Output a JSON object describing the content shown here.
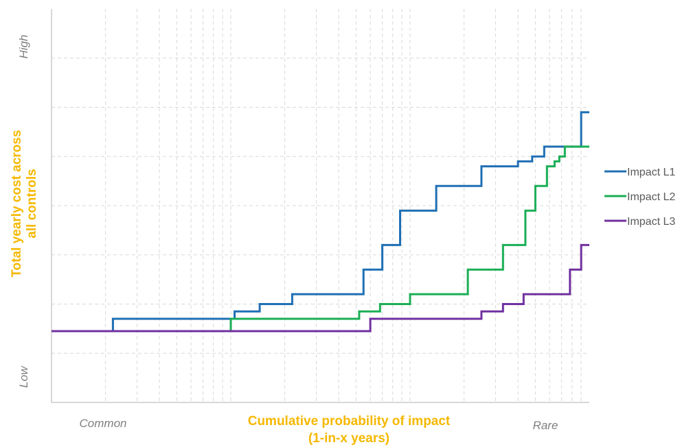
{
  "chart_data": {
    "type": "line",
    "step": true,
    "x_scale": "log",
    "xlim": [
      1,
      1000
    ],
    "ylim": [
      0,
      8
    ],
    "grid": true,
    "legend_position": "right",
    "xlabel_lines": [
      "Cumulative probability of impact",
      "(1-in-x years)"
    ],
    "ylabel_lines": [
      "Total yearly cost across",
      "all controls"
    ],
    "x_tick_labels": [
      "Common",
      "Rare"
    ],
    "y_tick_labels": [
      "Low",
      "High"
    ],
    "series": [
      {
        "name": "Impact L1",
        "color": "#1f6fb4",
        "points": [
          [
            1,
            1.45
          ],
          [
            2.2,
            1.45
          ],
          [
            2.2,
            1.7
          ],
          [
            10.5,
            1.7
          ],
          [
            10.5,
            1.85
          ],
          [
            14.5,
            1.85
          ],
          [
            14.5,
            2.0
          ],
          [
            22,
            2.0
          ],
          [
            22,
            2.2
          ],
          [
            55,
            2.2
          ],
          [
            55,
            2.7
          ],
          [
            70,
            2.7
          ],
          [
            70,
            3.2
          ],
          [
            88,
            3.2
          ],
          [
            88,
            3.9
          ],
          [
            140,
            3.9
          ],
          [
            140,
            4.4
          ],
          [
            250,
            4.4
          ],
          [
            250,
            4.8
          ],
          [
            400,
            4.8
          ],
          [
            400,
            4.9
          ],
          [
            480,
            4.9
          ],
          [
            480,
            5.0
          ],
          [
            560,
            5.0
          ],
          [
            560,
            5.2
          ],
          [
            900,
            5.2
          ],
          [
            900,
            5.9
          ],
          [
            1000,
            5.9
          ]
        ]
      },
      {
        "name": "Impact L2",
        "color": "#1aae55",
        "points": [
          [
            1,
            1.45
          ],
          [
            10,
            1.45
          ],
          [
            10,
            1.7
          ],
          [
            52,
            1.7
          ],
          [
            52,
            1.85
          ],
          [
            68,
            1.85
          ],
          [
            68,
            2.0
          ],
          [
            100,
            2.0
          ],
          [
            100,
            2.2
          ],
          [
            210,
            2.2
          ],
          [
            210,
            2.7
          ],
          [
            330,
            2.7
          ],
          [
            330,
            3.2
          ],
          [
            440,
            3.2
          ],
          [
            440,
            3.9
          ],
          [
            500,
            3.9
          ],
          [
            500,
            4.4
          ],
          [
            580,
            4.4
          ],
          [
            580,
            4.8
          ],
          [
            640,
            4.8
          ],
          [
            640,
            4.9
          ],
          [
            680,
            4.9
          ],
          [
            680,
            5.0
          ],
          [
            730,
            5.0
          ],
          [
            730,
            5.2
          ],
          [
            1000,
            5.2
          ]
        ]
      },
      {
        "name": "Impact L3",
        "color": "#7030a0",
        "points": [
          [
            1,
            1.45
          ],
          [
            60,
            1.45
          ],
          [
            60,
            1.7
          ],
          [
            250,
            1.7
          ],
          [
            250,
            1.85
          ],
          [
            330,
            1.85
          ],
          [
            330,
            2.0
          ],
          [
            430,
            2.0
          ],
          [
            430,
            2.2
          ],
          [
            780,
            2.2
          ],
          [
            780,
            2.7
          ],
          [
            900,
            2.7
          ],
          [
            900,
            3.2
          ],
          [
            1000,
            3.2
          ]
        ]
      }
    ]
  }
}
